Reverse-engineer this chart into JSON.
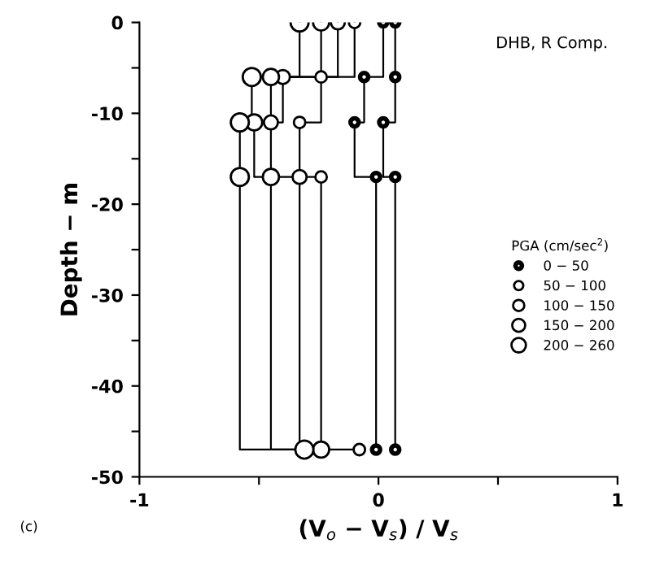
{
  "chart_data": {
    "type": "step",
    "xlabel": "(V$_{o}$ − V$_{s}$) / V$_{s}$",
    "ylabel": "Depth − m",
    "legend_title": "PGA (cm/sec$^{2}$)",
    "annotations": [
      "DHB, R Comp.",
      "(c)"
    ],
    "xlim": [
      -1,
      1
    ],
    "ylim": [
      -50,
      0
    ],
    "xticks": [
      {
        "value": -1,
        "label": "-1"
      },
      {
        "value": -0.5,
        "label": null
      },
      0,
      {
        "value": 0.5,
        "label": null
      },
      1
    ],
    "yticks": [
      {
        "value": -50,
        "label": "-50"
      },
      {
        "value": -45,
        "label": null
      },
      {
        "value": -40,
        "label": "-40"
      },
      {
        "value": -35,
        "label": null
      },
      {
        "value": -30,
        "label": "-30"
      },
      {
        "value": -25,
        "label": null
      },
      {
        "value": -20,
        "label": "-20"
      },
      {
        "value": -15,
        "label": null
      },
      {
        "value": -10,
        "label": "-10"
      },
      {
        "value": -5,
        "label": null
      },
      0
    ],
    "marker": "circle",
    "legend": "right",
    "grid": false,
    "series": [
      {
        "name": "0 − 50",
        "color": "#000000",
        "x": [
          0.07,
          0.07,
          0.02,
          0.07,
          0.07
        ],
        "values": [
          0,
          -6,
          -11,
          -17,
          -47
        ]
      },
      {
        "color": "#000000",
        "x": [
          0.02,
          -0.06,
          -0.1,
          -0.01,
          -0.01
        ],
        "values": [
          0,
          -6,
          -11,
          -17,
          -47
        ]
      },
      {
        "name": "50 − 100",
        "color": "#000000",
        "x": [
          -0.1,
          -0.24,
          -0.33,
          -0.24,
          -0.08
        ],
        "values": [
          0,
          -6,
          -11,
          -17,
          -47
        ]
      },
      {
        "name": "100 − 150",
        "color": "#000000",
        "x": [
          -0.17,
          -0.4,
          -0.45,
          -0.33,
          -0.31
        ],
        "values": [
          0,
          -6,
          -11,
          -17,
          -47
        ]
      },
      {
        "name": "150 − 200",
        "color": "#000000",
        "x": [
          -0.24,
          -0.45,
          -0.52,
          -0.45,
          -0.24
        ],
        "values": [
          0,
          -6,
          -11,
          -17,
          -47
        ]
      },
      {
        "name": "200 − 260",
        "color": "#000000",
        "x": [
          -0.33,
          -0.53,
          -0.58,
          -0.58,
          -0.31
        ],
        "values": [
          0,
          -6,
          -11,
          -17,
          -47
        ]
      }
    ]
  }
}
